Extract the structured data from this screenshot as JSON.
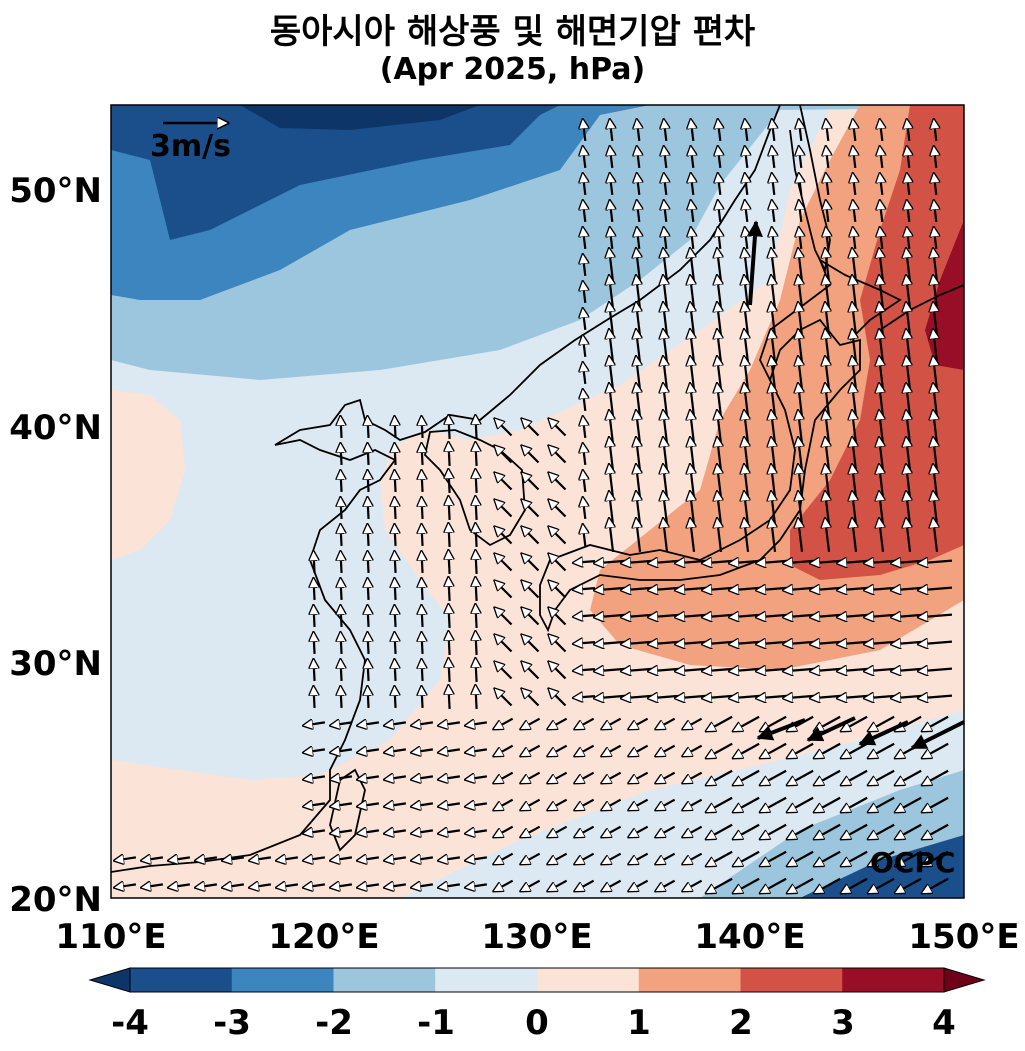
{
  "title": "동아시아 해상풍 및 해면기압 편차",
  "subtitle": "(Apr 2025, hPa)",
  "map": {
    "lat_labels": [
      "50°N",
      "40°N",
      "30°N",
      "20°N"
    ],
    "lon_labels": [
      "110°E",
      "120°E",
      "130°E",
      "140°E",
      "150°E"
    ],
    "reference_vector_label": "3m/s",
    "watermark": "OCPC"
  },
  "colorbar": {
    "ticks": [
      "-4",
      "-3",
      "-2",
      "-1",
      "0",
      "1",
      "2",
      "3",
      "4"
    ],
    "colors": [
      "#1a4f8c",
      "#3c85be",
      "#9cc6de",
      "#dde9f2",
      "#fbe3d8",
      "#f2a27e",
      "#d25345",
      "#990e27"
    ],
    "extend_low_color": "#0d3567",
    "extend_high_color": "#70001a"
  },
  "palette": {
    "land_outline": "#000000",
    "arrow_fill": "#ffffff",
    "highlight_arrow": "#000000"
  }
}
